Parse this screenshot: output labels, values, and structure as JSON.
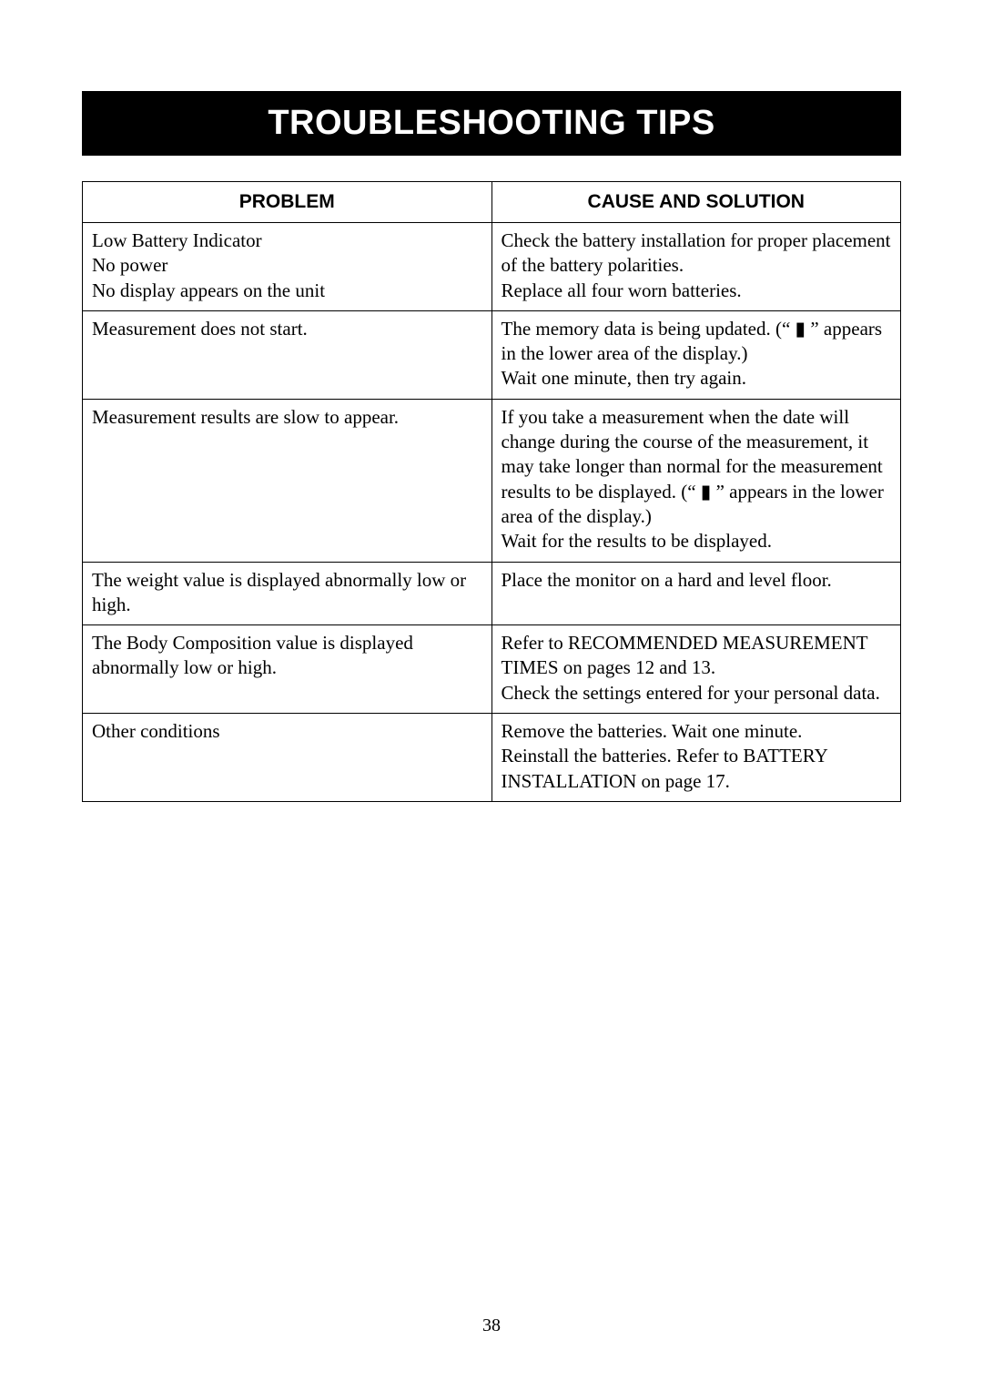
{
  "banner": {
    "title": "TROUBLESHOOTING TIPS"
  },
  "headers": {
    "problem": "PROBLEM",
    "solution": "CAUSE AND SOLUTION"
  },
  "icons": {
    "busy": "▮"
  },
  "rows": [
    {
      "problem": "Low Battery Indicator\nNo power\nNo display appears on the unit",
      "solution": "Check the battery installation for proper placement of the battery polarities.\nReplace all four worn batteries."
    },
    {
      "problem": "Measurement does not start.",
      "solution": "The memory data is being updated. (“ ▮ ” appears in the lower area of the display.)\nWait one minute, then try again."
    },
    {
      "problem": "Measurement results are slow to appear.",
      "solution": "If you take a measurement when the date will change during the course of the measurement, it may take longer than normal for the measurement results to be displayed. (“ ▮ ” appears in the lower area of the display.)\nWait for the results to be displayed."
    },
    {
      "problem": "The weight value is displayed abnormally low or high.",
      "solution": "Place the monitor on a hard and level floor."
    },
    {
      "problem": "The Body Composition value is displayed abnormally low or high.",
      "solution": "Refer to RECOMMENDED MEASUREMENT TIMES on pages 12 and 13.\nCheck the settings entered for your personal data."
    },
    {
      "problem": "Other conditions",
      "solution": "Remove the batteries. Wait one minute.\nReinstall the batteries. Refer to BATTERY INSTALLATION on page 17."
    }
  ],
  "page_number": "38"
}
